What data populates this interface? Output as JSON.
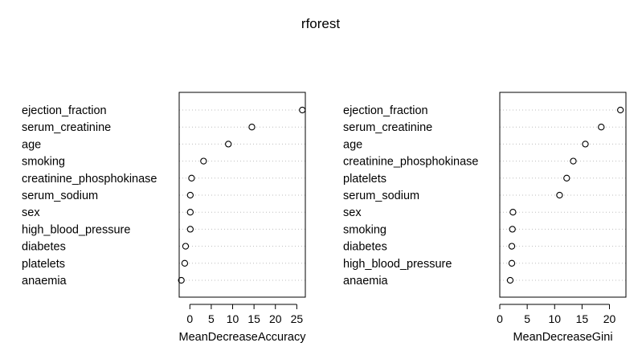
{
  "title": "rforest",
  "chart_data": [
    {
      "type": "scatter",
      "title": "",
      "xlabel": "MeanDecreaseAccuracy",
      "ylabel": "",
      "xlim": [
        -2.5,
        27
      ],
      "xticks": [
        0,
        5,
        10,
        15,
        20,
        25
      ],
      "grid": "dotted horizontal",
      "categories": [
        "ejection_fraction",
        "serum_creatinine",
        "age",
        "smoking",
        "creatinine_phosphokinase",
        "serum_sodium",
        "sex",
        "high_blood_pressure",
        "diabetes",
        "platelets",
        "anaemia"
      ],
      "values": [
        26.3,
        14.5,
        9.0,
        3.2,
        0.4,
        0.1,
        0.1,
        0.1,
        -1.0,
        -1.2,
        -2.0
      ]
    },
    {
      "type": "scatter",
      "title": "",
      "xlabel": "MeanDecreaseGini",
      "ylabel": "",
      "xlim": [
        0,
        23
      ],
      "xticks": [
        0,
        5,
        10,
        15,
        20
      ],
      "grid": "dotted horizontal",
      "categories": [
        "ejection_fraction",
        "serum_creatinine",
        "age",
        "creatinine_phosphokinase",
        "platelets",
        "serum_sodium",
        "sex",
        "smoking",
        "diabetes",
        "high_blood_pressure",
        "anaemia"
      ],
      "values": [
        22.0,
        18.5,
        15.6,
        13.4,
        12.2,
        10.9,
        2.4,
        2.3,
        2.2,
        2.2,
        1.9
      ]
    }
  ]
}
